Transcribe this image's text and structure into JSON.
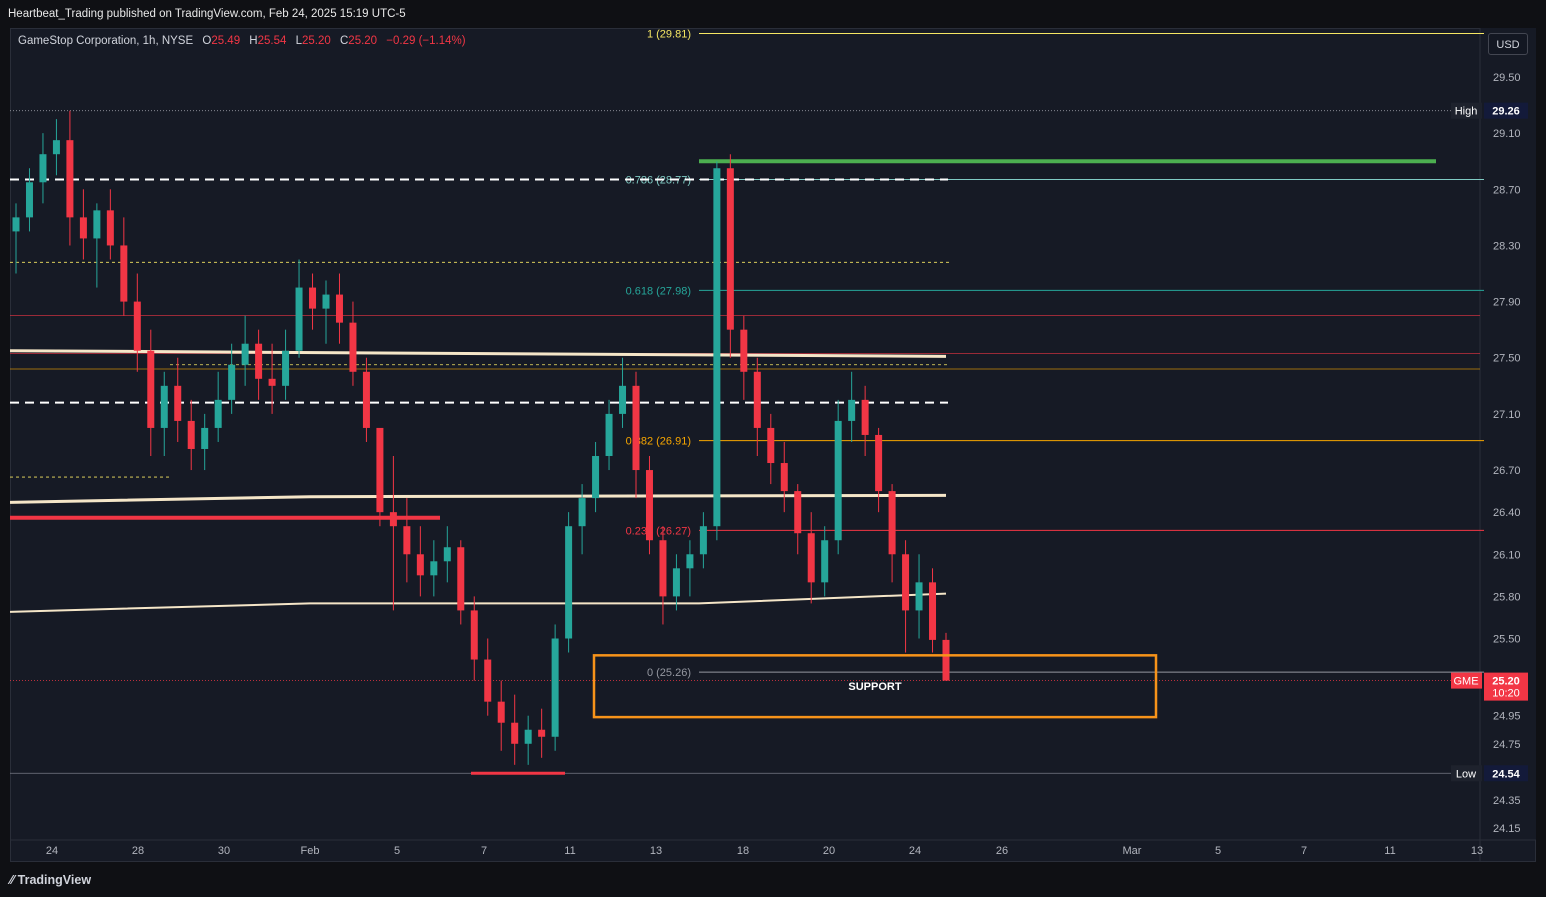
{
  "header": {
    "publisher_line": "Heartbeat_Trading published on TradingView.com, Feb 24, 2025 15:19 UTC-5"
  },
  "symbol": {
    "name": "GameStop Corporation, 1h, NYSE",
    "o_label": "O",
    "o": "25.49",
    "h_label": "H",
    "h": "25.54",
    "l_label": "L",
    "l": "25.20",
    "c_label": "C",
    "c": "25.20",
    "change": "−0.29 (−1.14%)"
  },
  "currency_button": "USD",
  "footer": {
    "brand": "TradingView"
  },
  "colors": {
    "up": "#26a69a",
    "down": "#f23645",
    "fib_line": "#f7a600",
    "support_box": "#f7931a",
    "ma_line": "#f5e6c8",
    "resistance_bar": "#4caf50"
  },
  "chart_data": {
    "type": "candlestick",
    "symbol": "GME",
    "timeframe": "1h",
    "x_ticks": [
      "24",
      "28",
      "30",
      "Feb",
      "5",
      "7",
      "11",
      "13",
      "18",
      "20",
      "24",
      "26",
      "Mar",
      "5",
      "7",
      "11",
      "13"
    ],
    "y_ticks": [
      "29.50",
      "29.10",
      "28.70",
      "28.30",
      "27.90",
      "27.50",
      "27.10",
      "26.70",
      "26.40",
      "26.10",
      "25.80",
      "25.50",
      "24.95",
      "24.75",
      "24.35",
      "24.15"
    ],
    "ylim": [
      24.05,
      30.05
    ],
    "price_labels": [
      {
        "name": "High",
        "value": "29.26"
      },
      {
        "name": "Low",
        "value": "24.54"
      },
      {
        "name": "GME",
        "value": "25.20",
        "sub": "10:20"
      }
    ],
    "fib_levels": [
      {
        "label": "1 (29.81)",
        "value": 29.81
      },
      {
        "label": "0.786 (28.77)",
        "value": 28.77
      },
      {
        "label": "0.618 (27.98)",
        "value": 27.98
      },
      {
        "label": "0.382 (26.91)",
        "value": 26.91
      },
      {
        "label": "0.236 (26.27)",
        "value": 26.27
      },
      {
        "label": "0 (25.26)",
        "value": 25.26
      }
    ],
    "annotations": [
      {
        "text": "SUPPORT",
        "y_range": [
          24.94,
          25.38
        ]
      }
    ],
    "series": [
      {
        "name": "GME",
        "type": "candles",
        "ohlc_sequence": [
          [
            28.4,
            28.6,
            28.1,
            28.5
          ],
          [
            28.5,
            28.85,
            28.4,
            28.75
          ],
          [
            28.75,
            29.1,
            28.6,
            28.95
          ],
          [
            28.95,
            29.2,
            28.8,
            29.05
          ],
          [
            29.05,
            29.26,
            28.3,
            28.5
          ],
          [
            28.5,
            28.7,
            28.2,
            28.35
          ],
          [
            28.35,
            28.6,
            28.0,
            28.55
          ],
          [
            28.55,
            28.7,
            28.2,
            28.3
          ],
          [
            28.3,
            28.5,
            27.8,
            27.9
          ],
          [
            27.9,
            28.1,
            27.4,
            27.55
          ],
          [
            27.55,
            27.7,
            26.8,
            27.0
          ],
          [
            27.0,
            27.4,
            26.8,
            27.3
          ],
          [
            27.3,
            27.5,
            26.9,
            27.05
          ],
          [
            27.05,
            27.2,
            26.7,
            26.85
          ],
          [
            26.85,
            27.1,
            26.7,
            27.0
          ],
          [
            27.0,
            27.4,
            26.9,
            27.2
          ],
          [
            27.2,
            27.6,
            27.1,
            27.45
          ],
          [
            27.45,
            27.8,
            27.3,
            27.6
          ],
          [
            27.6,
            27.7,
            27.2,
            27.35
          ],
          [
            27.35,
            27.6,
            27.1,
            27.3
          ],
          [
            27.3,
            27.7,
            27.2,
            27.55
          ],
          [
            27.55,
            28.2,
            27.5,
            28.0
          ],
          [
            28.0,
            28.1,
            27.7,
            27.85
          ],
          [
            27.85,
            28.05,
            27.6,
            27.95
          ],
          [
            27.95,
            28.1,
            27.6,
            27.75
          ],
          [
            27.75,
            27.9,
            27.3,
            27.4
          ],
          [
            27.4,
            27.5,
            26.9,
            27.0
          ],
          [
            27.0,
            26.9,
            26.3,
            26.4
          ],
          [
            26.4,
            26.8,
            25.7,
            26.3
          ],
          [
            26.3,
            26.5,
            25.9,
            26.1
          ],
          [
            26.1,
            26.3,
            25.8,
            25.95
          ],
          [
            25.95,
            26.2,
            25.8,
            26.05
          ],
          [
            26.05,
            26.3,
            25.9,
            26.15
          ],
          [
            26.15,
            26.2,
            25.6,
            25.7
          ],
          [
            25.7,
            25.8,
            25.2,
            25.35
          ],
          [
            25.35,
            25.5,
            24.95,
            25.05
          ],
          [
            25.05,
            25.2,
            24.7,
            24.9
          ],
          [
            24.9,
            25.1,
            24.6,
            24.75
          ],
          [
            24.75,
            24.95,
            24.6,
            24.85
          ],
          [
            24.85,
            25.0,
            24.65,
            24.8
          ],
          [
            24.8,
            25.6,
            24.7,
            25.5
          ],
          [
            25.5,
            26.4,
            25.4,
            26.3
          ],
          [
            26.3,
            26.6,
            26.1,
            26.5
          ],
          [
            26.5,
            26.9,
            26.4,
            26.8
          ],
          [
            26.8,
            27.2,
            26.7,
            27.1
          ],
          [
            27.1,
            27.5,
            27.0,
            27.3
          ],
          [
            27.3,
            27.4,
            26.5,
            26.7
          ],
          [
            26.7,
            26.8,
            26.1,
            26.2
          ],
          [
            26.2,
            26.3,
            25.6,
            25.8
          ],
          [
            25.8,
            26.1,
            25.7,
            26.0
          ],
          [
            26.0,
            26.2,
            25.8,
            26.1
          ],
          [
            26.1,
            26.4,
            26.0,
            26.3
          ],
          [
            26.3,
            28.9,
            26.2,
            28.85
          ],
          [
            28.85,
            28.95,
            27.5,
            27.7
          ],
          [
            27.7,
            27.8,
            27.2,
            27.4
          ],
          [
            27.4,
            27.5,
            26.8,
            27.0
          ],
          [
            27.0,
            27.1,
            26.6,
            26.75
          ],
          [
            26.75,
            26.9,
            26.4,
            26.55
          ],
          [
            26.55,
            26.6,
            26.1,
            26.25
          ],
          [
            26.25,
            26.4,
            25.75,
            25.9
          ],
          [
            25.9,
            26.3,
            25.8,
            26.2
          ],
          [
            26.2,
            27.2,
            26.1,
            27.05
          ],
          [
            27.05,
            27.4,
            26.9,
            27.2
          ],
          [
            27.2,
            27.3,
            26.8,
            26.95
          ],
          [
            26.95,
            27.0,
            26.4,
            26.55
          ],
          [
            26.55,
            26.6,
            25.9,
            26.1
          ],
          [
            26.1,
            26.2,
            25.4,
            25.7
          ],
          [
            25.7,
            26.1,
            25.5,
            25.9
          ],
          [
            25.9,
            26.0,
            25.4,
            25.49
          ],
          [
            25.49,
            25.54,
            25.2,
            25.2
          ]
        ]
      }
    ]
  }
}
